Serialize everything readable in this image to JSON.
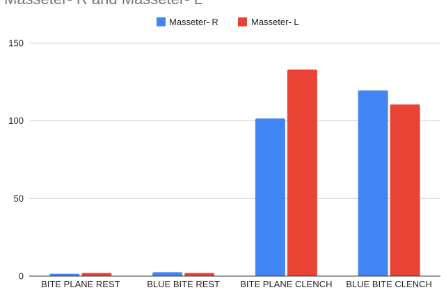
{
  "chart_data": {
    "type": "bar",
    "title": "Masseter- R and Masseter- L",
    "categories": [
      "BITE PLANE REST",
      "BLUE BITE REST",
      "BITE PLANE CLENCH",
      "BLUE BITE CLENCH"
    ],
    "series": [
      {
        "name": "Masseter- R",
        "color": "#4285f4",
        "values": [
          1.5,
          2.5,
          101.5,
          119.5
        ]
      },
      {
        "name": "Masseter- L",
        "color": "#ea4335",
        "values": [
          2,
          2,
          133,
          110.5
        ]
      }
    ],
    "yticks": [
      0,
      50,
      100,
      150
    ],
    "ylim": [
      0,
      150
    ],
    "grid": true,
    "legend_position": "top-center",
    "xlabel": "",
    "ylabel": ""
  }
}
